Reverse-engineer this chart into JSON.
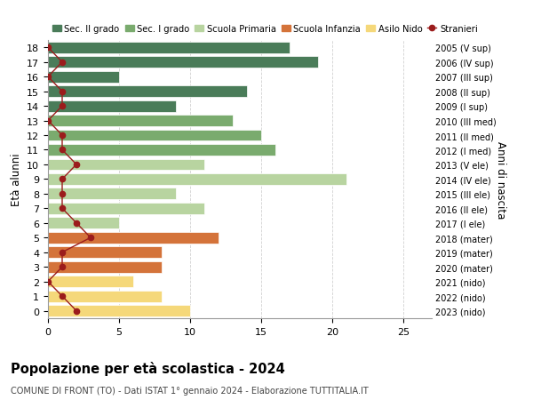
{
  "title": "Popolazione per età scolastica - 2024",
  "subtitle": "COMUNE DI FRONT (TO) - Dati ISTAT 1° gennaio 2024 - Elaborazione TUTTITALIA.IT",
  "ylabel_left": "Età alunni",
  "ylabel_right": "Anni di nascita",
  "ages": [
    18,
    17,
    16,
    15,
    14,
    13,
    12,
    11,
    10,
    9,
    8,
    7,
    6,
    5,
    4,
    3,
    2,
    1,
    0
  ],
  "right_labels": [
    "2005 (V sup)",
    "2006 (IV sup)",
    "2007 (III sup)",
    "2008 (II sup)",
    "2009 (I sup)",
    "2010 (III med)",
    "2011 (II med)",
    "2012 (I med)",
    "2013 (V ele)",
    "2014 (IV ele)",
    "2015 (III ele)",
    "2016 (II ele)",
    "2017 (I ele)",
    "2018 (mater)",
    "2019 (mater)",
    "2020 (mater)",
    "2021 (nido)",
    "2022 (nido)",
    "2023 (nido)"
  ],
  "bar_values": [
    17,
    19,
    5,
    14,
    9,
    13,
    15,
    16,
    11,
    21,
    9,
    11,
    5,
    12,
    8,
    8,
    6,
    8,
    10
  ],
  "stranieri_values": [
    0,
    1,
    0,
    1,
    1,
    0,
    1,
    1,
    2,
    1,
    1,
    1,
    2,
    3,
    1,
    1,
    0,
    1,
    2
  ],
  "bar_colors": [
    "#4a7c59",
    "#4a7c59",
    "#4a7c59",
    "#4a7c59",
    "#4a7c59",
    "#7aab6e",
    "#7aab6e",
    "#7aab6e",
    "#b8d4a0",
    "#b8d4a0",
    "#b8d4a0",
    "#b8d4a0",
    "#b8d4a0",
    "#d4733a",
    "#d4733a",
    "#d4733a",
    "#f5d87a",
    "#f5d87a",
    "#f5d87a"
  ],
  "legend_labels": [
    "Sec. II grado",
    "Sec. I grado",
    "Scuola Primaria",
    "Scuola Infanzia",
    "Asilo Nido",
    "Stranieri"
  ],
  "legend_colors": [
    "#4a7c59",
    "#7aab6e",
    "#b8d4a0",
    "#d4733a",
    "#f5d87a",
    "#a01010"
  ],
  "xlim": [
    0,
    27
  ],
  "xticks": [
    0,
    5,
    10,
    15,
    20,
    25
  ],
  "background_color": "#ffffff",
  "stranieri_color": "#9b1c1c"
}
